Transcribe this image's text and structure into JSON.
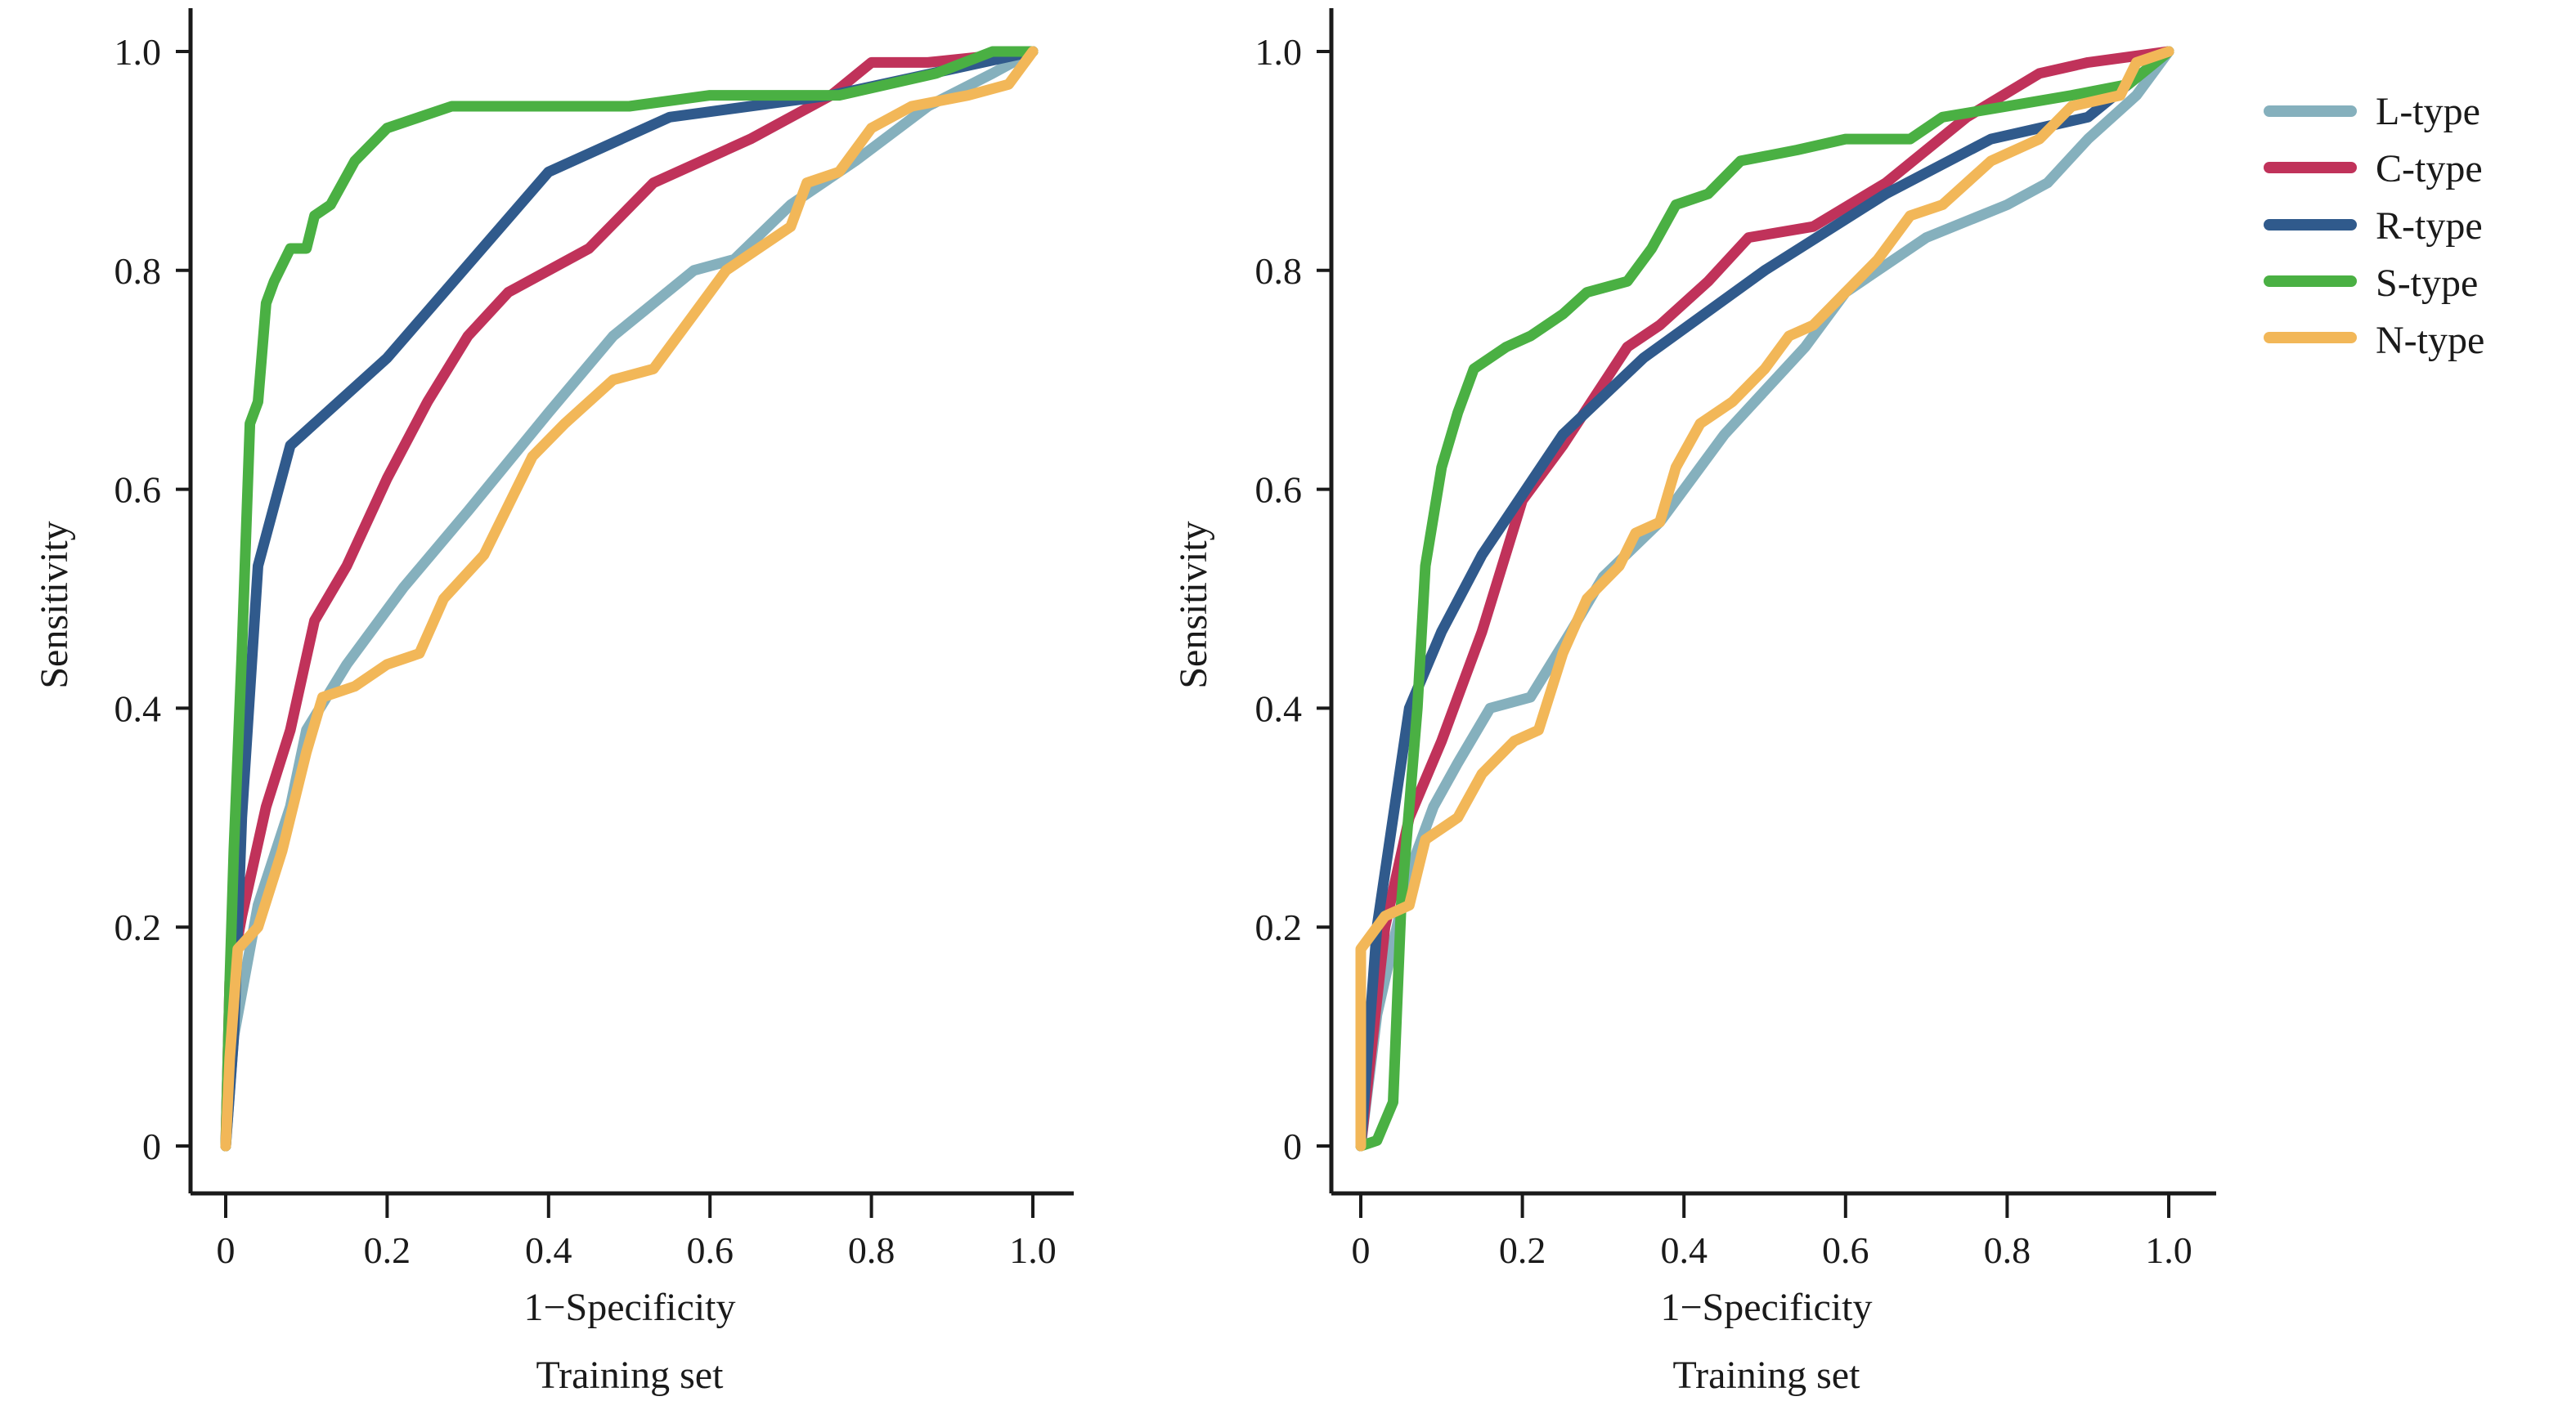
{
  "chart_data": [
    {
      "type": "line",
      "title": "",
      "subtitle": "Training set",
      "xlabel": "1−Specificity",
      "ylabel": "Sensitivity",
      "xlim": [
        0,
        1
      ],
      "ylim": [
        0,
        1
      ],
      "x_ticks": [
        "0",
        "0.2",
        "0.4",
        "0.6",
        "0.8",
        "1.0"
      ],
      "y_ticks": [
        "0",
        "0.2",
        "0.4",
        "0.6",
        "0.8",
        "1.0"
      ],
      "grid": false,
      "series": [
        {
          "name": "L-type",
          "color": "#85b0bd",
          "points": [
            [
              0,
              0
            ],
            [
              0.01,
              0.1
            ],
            [
              0.04,
              0.22
            ],
            [
              0.08,
              0.31
            ],
            [
              0.1,
              0.38
            ],
            [
              0.15,
              0.44
            ],
            [
              0.22,
              0.51
            ],
            [
              0.3,
              0.58
            ],
            [
              0.4,
              0.67
            ],
            [
              0.48,
              0.74
            ],
            [
              0.53,
              0.77
            ],
            [
              0.58,
              0.8
            ],
            [
              0.63,
              0.81
            ],
            [
              0.7,
              0.86
            ],
            [
              0.78,
              0.9
            ],
            [
              0.87,
              0.95
            ],
            [
              0.95,
              0.98
            ],
            [
              1,
              1
            ]
          ]
        },
        {
          "name": "C-type",
          "color": "#c0325a",
          "points": [
            [
              0,
              0
            ],
            [
              0.005,
              0.15
            ],
            [
              0.02,
              0.21
            ],
            [
              0.05,
              0.31
            ],
            [
              0.08,
              0.38
            ],
            [
              0.11,
              0.48
            ],
            [
              0.15,
              0.53
            ],
            [
              0.2,
              0.61
            ],
            [
              0.25,
              0.68
            ],
            [
              0.3,
              0.74
            ],
            [
              0.35,
              0.78
            ],
            [
              0.45,
              0.82
            ],
            [
              0.53,
              0.88
            ],
            [
              0.65,
              0.92
            ],
            [
              0.75,
              0.96
            ],
            [
              0.8,
              0.99
            ],
            [
              0.87,
              0.99
            ],
            [
              1,
              1
            ]
          ]
        },
        {
          "name": "R-type",
          "color": "#305a8c",
          "points": [
            [
              0,
              0
            ],
            [
              0.01,
              0.1
            ],
            [
              0.02,
              0.3
            ],
            [
              0.04,
              0.53
            ],
            [
              0.08,
              0.64
            ],
            [
              0.2,
              0.72
            ],
            [
              0.4,
              0.89
            ],
            [
              0.55,
              0.94
            ],
            [
              0.75,
              0.96
            ],
            [
              1,
              1
            ]
          ]
        },
        {
          "name": "S-type",
          "color": "#4ab043",
          "points": [
            [
              0,
              0
            ],
            [
              0.005,
              0.15
            ],
            [
              0.01,
              0.27
            ],
            [
              0.02,
              0.45
            ],
            [
              0.03,
              0.66
            ],
            [
              0.04,
              0.68
            ],
            [
              0.05,
              0.77
            ],
            [
              0.06,
              0.79
            ],
            [
              0.08,
              0.82
            ],
            [
              0.1,
              0.82
            ],
            [
              0.11,
              0.85
            ],
            [
              0.13,
              0.86
            ],
            [
              0.16,
              0.9
            ],
            [
              0.2,
              0.93
            ],
            [
              0.24,
              0.94
            ],
            [
              0.28,
              0.95
            ],
            [
              0.5,
              0.95
            ],
            [
              0.6,
              0.96
            ],
            [
              0.76,
              0.96
            ],
            [
              0.88,
              0.98
            ],
            [
              0.95,
              1.0
            ],
            [
              1,
              1
            ]
          ]
        },
        {
          "name": "N-type",
          "color": "#f2b758",
          "points": [
            [
              0,
              0
            ],
            [
              0.005,
              0.08
            ],
            [
              0.015,
              0.18
            ],
            [
              0.04,
              0.2
            ],
            [
              0.07,
              0.27
            ],
            [
              0.1,
              0.36
            ],
            [
              0.12,
              0.41
            ],
            [
              0.16,
              0.42
            ],
            [
              0.2,
              0.44
            ],
            [
              0.24,
              0.45
            ],
            [
              0.27,
              0.5
            ],
            [
              0.32,
              0.54
            ],
            [
              0.38,
              0.63
            ],
            [
              0.42,
              0.66
            ],
            [
              0.48,
              0.7
            ],
            [
              0.53,
              0.71
            ],
            [
              0.58,
              0.76
            ],
            [
              0.62,
              0.8
            ],
            [
              0.66,
              0.82
            ],
            [
              0.7,
              0.84
            ],
            [
              0.72,
              0.88
            ],
            [
              0.76,
              0.89
            ],
            [
              0.8,
              0.93
            ],
            [
              0.85,
              0.95
            ],
            [
              0.92,
              0.96
            ],
            [
              0.97,
              0.97
            ],
            [
              1,
              1
            ]
          ]
        }
      ]
    },
    {
      "type": "line",
      "title": "",
      "subtitle": "Training set",
      "xlabel": "1−Specificity",
      "ylabel": "Sensitivity",
      "xlim": [
        0,
        1
      ],
      "ylim": [
        0,
        1
      ],
      "x_ticks": [
        "0",
        "0.2",
        "0.4",
        "0.6",
        "0.8",
        "1.0"
      ],
      "y_ticks": [
        "0",
        "0.2",
        "0.4",
        "0.6",
        "0.8",
        "1.0"
      ],
      "grid": false,
      "legend": "right",
      "series": [
        {
          "name": "L-type",
          "color": "#85b0bd",
          "points": [
            [
              0,
              0
            ],
            [
              0.02,
              0.12
            ],
            [
              0.06,
              0.25
            ],
            [
              0.09,
              0.31
            ],
            [
              0.12,
              0.35
            ],
            [
              0.16,
              0.4
            ],
            [
              0.21,
              0.41
            ],
            [
              0.26,
              0.47
            ],
            [
              0.3,
              0.52
            ],
            [
              0.37,
              0.57
            ],
            [
              0.45,
              0.65
            ],
            [
              0.55,
              0.73
            ],
            [
              0.6,
              0.78
            ],
            [
              0.7,
              0.83
            ],
            [
              0.8,
              0.86
            ],
            [
              0.85,
              0.88
            ],
            [
              0.9,
              0.92
            ],
            [
              0.96,
              0.96
            ],
            [
              1,
              1
            ]
          ]
        },
        {
          "name": "C-type",
          "color": "#c0325a",
          "points": [
            [
              0,
              0
            ],
            [
              0.03,
              0.2
            ],
            [
              0.06,
              0.3
            ],
            [
              0.1,
              0.37
            ],
            [
              0.15,
              0.47
            ],
            [
              0.2,
              0.59
            ],
            [
              0.25,
              0.64
            ],
            [
              0.33,
              0.73
            ],
            [
              0.37,
              0.75
            ],
            [
              0.43,
              0.79
            ],
            [
              0.48,
              0.83
            ],
            [
              0.56,
              0.84
            ],
            [
              0.65,
              0.88
            ],
            [
              0.75,
              0.94
            ],
            [
              0.84,
              0.98
            ],
            [
              0.9,
              0.99
            ],
            [
              1,
              1
            ]
          ]
        },
        {
          "name": "R-type",
          "color": "#305a8c",
          "points": [
            [
              0,
              0
            ],
            [
              0.02,
              0.2
            ],
            [
              0.04,
              0.3
            ],
            [
              0.06,
              0.4
            ],
            [
              0.1,
              0.47
            ],
            [
              0.15,
              0.54
            ],
            [
              0.25,
              0.65
            ],
            [
              0.35,
              0.72
            ],
            [
              0.5,
              0.8
            ],
            [
              0.65,
              0.87
            ],
            [
              0.78,
              0.92
            ],
            [
              0.9,
              0.94
            ],
            [
              1,
              1
            ]
          ]
        },
        {
          "name": "S-type",
          "color": "#4ab043",
          "points": [
            [
              0,
              0
            ],
            [
              0.02,
              0.005
            ],
            [
              0.04,
              0.04
            ],
            [
              0.05,
              0.22
            ],
            [
              0.07,
              0.4
            ],
            [
              0.08,
              0.53
            ],
            [
              0.1,
              0.62
            ],
            [
              0.12,
              0.67
            ],
            [
              0.14,
              0.71
            ],
            [
              0.18,
              0.73
            ],
            [
              0.21,
              0.74
            ],
            [
              0.25,
              0.76
            ],
            [
              0.28,
              0.78
            ],
            [
              0.33,
              0.79
            ],
            [
              0.36,
              0.82
            ],
            [
              0.39,
              0.86
            ],
            [
              0.43,
              0.87
            ],
            [
              0.47,
              0.9
            ],
            [
              0.54,
              0.91
            ],
            [
              0.6,
              0.92
            ],
            [
              0.68,
              0.92
            ],
            [
              0.72,
              0.94
            ],
            [
              0.8,
              0.95
            ],
            [
              0.88,
              0.96
            ],
            [
              0.95,
              0.97
            ],
            [
              1,
              1
            ]
          ]
        },
        {
          "name": "N-type",
          "color": "#f2b758",
          "points": [
            [
              0,
              0
            ],
            [
              0.0,
              0.18
            ],
            [
              0.03,
              0.21
            ],
            [
              0.06,
              0.22
            ],
            [
              0.08,
              0.28
            ],
            [
              0.12,
              0.3
            ],
            [
              0.15,
              0.34
            ],
            [
              0.19,
              0.37
            ],
            [
              0.22,
              0.38
            ],
            [
              0.25,
              0.45
            ],
            [
              0.28,
              0.5
            ],
            [
              0.32,
              0.53
            ],
            [
              0.34,
              0.56
            ],
            [
              0.37,
              0.57
            ],
            [
              0.39,
              0.62
            ],
            [
              0.42,
              0.66
            ],
            [
              0.46,
              0.68
            ],
            [
              0.5,
              0.71
            ],
            [
              0.53,
              0.74
            ],
            [
              0.56,
              0.75
            ],
            [
              0.6,
              0.78
            ],
            [
              0.64,
              0.81
            ],
            [
              0.68,
              0.85
            ],
            [
              0.72,
              0.86
            ],
            [
              0.78,
              0.9
            ],
            [
              0.84,
              0.92
            ],
            [
              0.88,
              0.95
            ],
            [
              0.94,
              0.96
            ],
            [
              0.96,
              0.99
            ],
            [
              1,
              1
            ]
          ]
        }
      ]
    }
  ],
  "legend": {
    "items": [
      {
        "label": "L-type",
        "color": "#85b0bd"
      },
      {
        "label": "C-type",
        "color": "#c0325a"
      },
      {
        "label": "R-type",
        "color": "#305a8c"
      },
      {
        "label": "S-type",
        "color": "#4ab043"
      },
      {
        "label": "N-type",
        "color": "#f2b758"
      }
    ]
  }
}
